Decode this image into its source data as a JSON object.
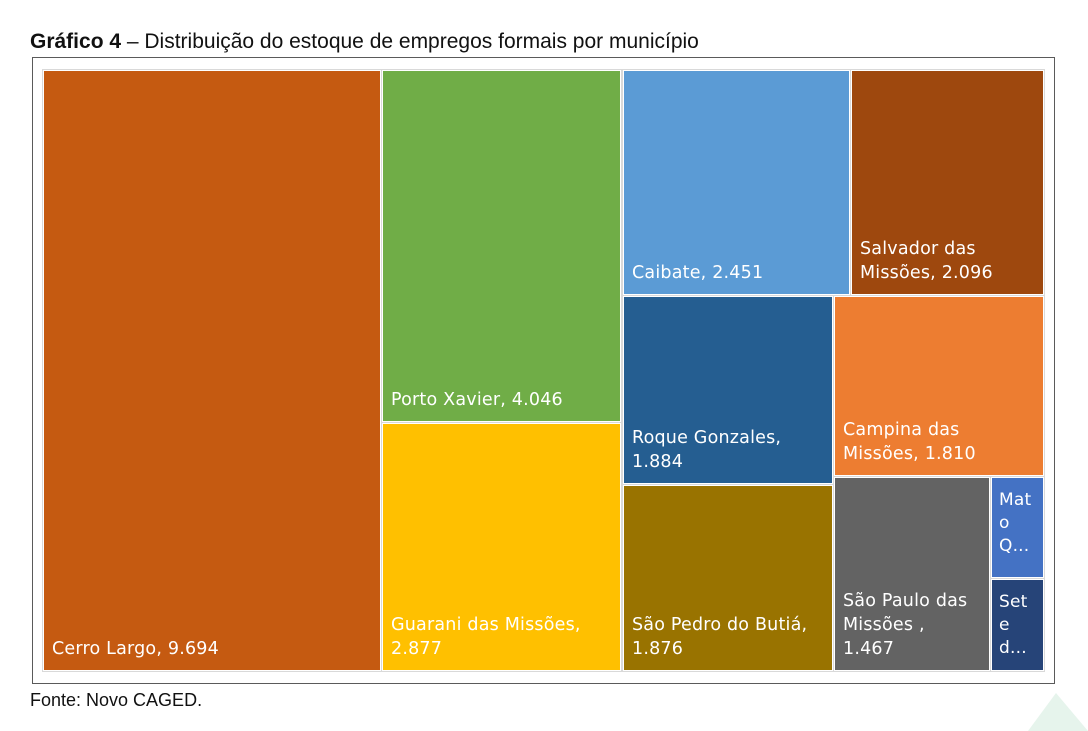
{
  "caption": {
    "prefix": "Gráfico 4",
    "text": " – Distribuição do estoque de empregos formais por município"
  },
  "source": "Fonte: Novo CAGED.",
  "chart_data": {
    "type": "treemap",
    "title": "",
    "items": [
      {
        "label": "Cerro Largo,  9.694",
        "name": "Cerro Largo",
        "value": 9694,
        "color": "#C55A11"
      },
      {
        "label": "Porto Xavier,  4.046",
        "name": "Porto Xavier",
        "value": 4046,
        "color": "#70AD47"
      },
      {
        "label": "Guarani das Missões,\n2.877",
        "name": "Guarani das Missões",
        "value": 2877,
        "color": "#FFC000"
      },
      {
        "label": "Caibate,  2.451",
        "name": "Caibate",
        "value": 2451,
        "color": "#5B9BD5"
      },
      {
        "label": "Salvador das\nMissões, 2.096",
        "name": "Salvador das Missões",
        "value": 2096,
        "color": "#9E480E"
      },
      {
        "label": "Roque Gonzales,\n1.884",
        "name": "Roque Gonzales",
        "value": 1884,
        "color": "#255E91"
      },
      {
        "label": "São Pedro do Butiá,\n1.876",
        "name": "São Pedro do Butiá",
        "value": 1876,
        "color": "#997300"
      },
      {
        "label": "Campina das\nMissões, 1.810",
        "name": "Campina das Missões",
        "value": 1810,
        "color": "#ED7D31"
      },
      {
        "label": "São Paulo das\nMissões ,\n1.467",
        "name": "São Paulo das Missões",
        "value": 1467,
        "color": "#636363"
      },
      {
        "label": "Mat\no\nQ...",
        "name": "Mato Queimado",
        "value": null,
        "color": "#4472C4"
      },
      {
        "label": "Set\ne\nd...",
        "name": "Sete de Setembro",
        "value": null,
        "color": "#264478"
      }
    ]
  }
}
